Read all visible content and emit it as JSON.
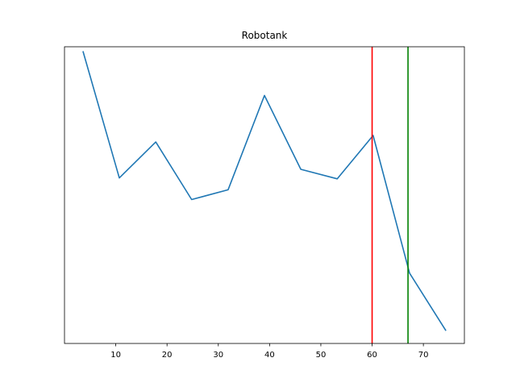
{
  "chart_data": {
    "type": "line",
    "title": "Robotank",
    "xlabel": "",
    "ylabel": "",
    "xlim": [
      0,
      78
    ],
    "ylim": [
      0,
      1
    ],
    "x_ticks": [
      10,
      20,
      30,
      40,
      50,
      60,
      70
    ],
    "x_tick_labels": [
      "10",
      "20",
      "30",
      "40",
      "50",
      "60",
      "70"
    ],
    "y_ticks_shown": false,
    "grid": false,
    "series": [
      {
        "color": "#1f77b4",
        "x": [
          3.6,
          10.7,
          17.8,
          24.8,
          31.9,
          39.0,
          46.1,
          53.2,
          60.2,
          67.3,
          74.4
        ],
        "y": [
          0.985,
          0.558,
          0.679,
          0.485,
          0.518,
          0.836,
          0.587,
          0.555,
          0.701,
          0.237,
          0.043
        ]
      }
    ],
    "vertical_lines": [
      {
        "x": 60.0,
        "color": "#ff0000"
      },
      {
        "x": 67.0,
        "color": "#008000"
      }
    ]
  }
}
